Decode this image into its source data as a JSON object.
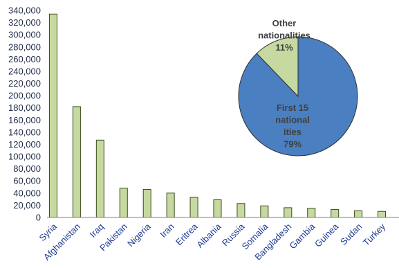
{
  "chart_data": [
    {
      "type": "bar",
      "categories": [
        "Syria",
        "Afghanistan",
        "Iraq",
        "Pakistan",
        "Nigeria",
        "Iran",
        "Eritrea",
        "Albania",
        "Russia",
        "Somalia",
        "Bangladesh",
        "Gambia",
        "Guinea",
        "Sudan",
        "Turkey"
      ],
      "values": [
        334000,
        182000,
        127000,
        48000,
        46000,
        40000,
        33000,
        29000,
        23000,
        19000,
        16000,
        15000,
        13000,
        11000,
        10000
      ],
      "ylim": [
        0,
        340000
      ],
      "yticks": [
        0,
        20000,
        40000,
        60000,
        80000,
        100000,
        120000,
        140000,
        160000,
        180000,
        200000,
        220000,
        240000,
        260000,
        280000,
        300000,
        320000,
        340000
      ],
      "ytick_labels": [
        "0",
        "20,000",
        "40,000",
        "60,000",
        "80,000",
        "100,000",
        "120,000",
        "140,000",
        "160,000",
        "180,000",
        "200,000",
        "220,000",
        "240,000",
        "260,000",
        "280,000",
        "300,000",
        "320,000",
        "340,000"
      ],
      "title": "",
      "xlabel": "",
      "ylabel": "",
      "grid": false,
      "colors": {
        "bar_fill": "#c6d9a0",
        "bar_stroke": "#3a4a1a",
        "axis": "#7f7f7f"
      }
    },
    {
      "type": "pie",
      "slices": [
        {
          "label_lines": [
            "First 15",
            "national",
            "ities",
            "79%"
          ],
          "value": 79,
          "color": "#4a7fc1"
        },
        {
          "label_lines": [
            "Other",
            "nationalities",
            "11%"
          ],
          "value": 11,
          "color": "#c6d9a0"
        }
      ],
      "colors": {
        "stroke": "#2f2f2f"
      }
    }
  ]
}
